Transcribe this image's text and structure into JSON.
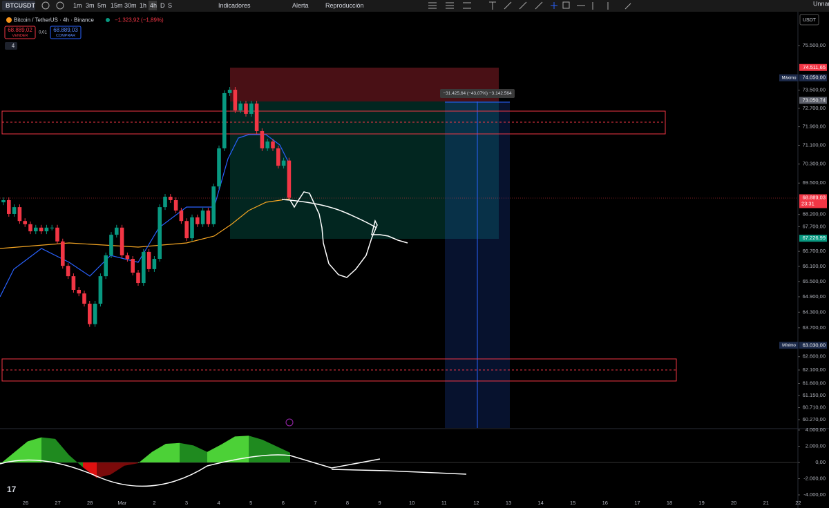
{
  "toolbar": {
    "symbol": "BTCUSDT",
    "intervals": [
      "1m",
      "3m",
      "5m",
      "15m",
      "30m",
      "1h",
      "4h",
      "D",
      "S"
    ],
    "indicators": "Indicadores",
    "alert": "Alerta",
    "replay": "Reproducción",
    "layout_name": "Unnam"
  },
  "legend": {
    "title": "Bitcoin / TetherUS · 4h · Binance",
    "change": "−1.323,92 (−1,89%)",
    "sell_price": "68.889,02",
    "sell": "VENDER",
    "spread": "0,01",
    "buy_price": "68.889,03",
    "buy": "COMPRAR",
    "collapsed_count": "4"
  },
  "currency": "USDT",
  "price_scale": {
    "log": true,
    "ylim": [
      59970,
      76960
    ],
    "yticks": [
      {
        "value": 75500,
        "label": "75.500,00"
      },
      {
        "value": 73500,
        "label": "73.500,00"
      },
      {
        "value": 72700,
        "label": "72.700,00"
      },
      {
        "value": 71900,
        "label": "71.900,00"
      },
      {
        "value": 71100,
        "label": "71.100,00"
      },
      {
        "value": 70300,
        "label": "70.300,00"
      },
      {
        "value": 69500,
        "label": "69.500,00"
      },
      {
        "value": 68200,
        "label": "68.200,00"
      },
      {
        "value": 67700,
        "label": "67.700,00"
      },
      {
        "value": 66700,
        "label": "66.700,00"
      },
      {
        "value": 66100,
        "label": "66.100,00"
      },
      {
        "value": 65500,
        "label": "65.500,00"
      },
      {
        "value": 64900,
        "label": "64.900,00"
      },
      {
        "value": 64300,
        "label": "64.300,00"
      },
      {
        "value": 63700,
        "label": "63.700,00"
      },
      {
        "value": 62600,
        "label": "62.600,00"
      },
      {
        "value": 62100,
        "label": "62.100,00"
      },
      {
        "value": 61600,
        "label": "61.600,00"
      },
      {
        "value": 61150,
        "label": "61.150,00"
      },
      {
        "value": 60710,
        "label": "60.710,00"
      },
      {
        "value": 60270,
        "label": "60.270,00"
      }
    ],
    "badges": [
      {
        "value": 74511.65,
        "label": "74.511,65",
        "color": "#f23645"
      },
      {
        "value": 74050,
        "label": "74.050,00",
        "color": "#1c2a4a",
        "note": "Máximo"
      },
      {
        "value": 73050.74,
        "label": "73.050,74",
        "color": "#5d606b"
      },
      {
        "value": 68889.03,
        "label": "68.889,03",
        "color": "#f23645",
        "note": "23:31"
      },
      {
        "value": 67226.99,
        "label": "67.226,99",
        "color": "#089981"
      },
      {
        "value": 63030,
        "label": "63.030,00",
        "color": "#1c2a4a",
        "note": "Mínimo"
      }
    ]
  },
  "position_label": "−31.425,64 (−43,07%) −3.142.564",
  "candles": {
    "first_open": 68700,
    "up_color": "#089981",
    "down_color": "#f23645",
    "closes": [
      68790,
      68220,
      68500,
      67930,
      67800,
      67510,
      67660,
      67510,
      67660,
      67660,
      67100,
      66120,
      65710,
      65170,
      65030,
      64630,
      63840,
      64630,
      65710,
      66540,
      67370,
      67660,
      66540,
      66400,
      65850,
      65440,
      66680,
      65990,
      66400,
      68500,
      68930,
      68790,
      68360,
      67930,
      67230,
      68080,
      67800,
      68360,
      67800,
      69360,
      70970,
      73370,
      73520,
      72610,
      72910,
      72460,
      72910,
      71710,
      70970,
      71260,
      70970,
      70230,
      70450,
      68889
    ]
  },
  "oscillator": {
    "ylim": [
      -4255,
      4085
    ],
    "yticks": [
      {
        "value": 4000,
        "label": "4.000,00"
      },
      {
        "value": 2000,
        "label": "2.000,00"
      },
      {
        "value": 0,
        "label": "0,00"
      },
      {
        "value": -2000,
        "label": "-2.000,00"
      },
      {
        "value": -4000,
        "label": "-4.000,00"
      }
    ],
    "values": [
      -200,
      1200,
      2600,
      3100,
      2900,
      900,
      -600,
      -1900,
      -1500,
      -400,
      -100,
      1300,
      2300,
      2400,
      2100,
      1300,
      2200,
      3200,
      3300,
      2800,
      2000,
      1200
    ]
  },
  "time_axis": [
    "26",
    "27",
    "28",
    "Mar",
    "2",
    "3",
    "4",
    "5",
    "6",
    "7",
    "8",
    "9",
    "10",
    "11",
    "12",
    "13",
    "14",
    "15",
    "16",
    "17",
    "18",
    "19",
    "20",
    "21",
    "22"
  ]
}
